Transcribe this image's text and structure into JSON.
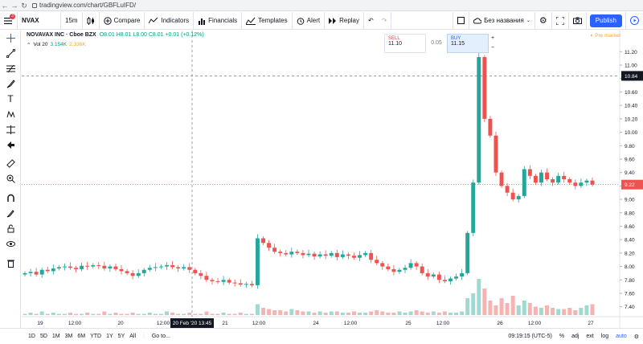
{
  "browser": {
    "url": "tradingview.com/chart/GBFLuIFD/"
  },
  "toolbar": {
    "symbol": "NVAX",
    "interval": "15m",
    "compare": "Compare",
    "indicators": "Indicators",
    "financials": "Financials",
    "templates": "Templates",
    "alert": "Alert",
    "replay": "Replay",
    "layout_name": "Без названия",
    "publish": "Publish",
    "badge_count": "3"
  },
  "legend": {
    "name": "NOVAVAX INC · Cboe BZX",
    "ohlc": "O8.01 H8.01 L8.00 C8.01 +0.01 (+0.12%)",
    "vol_label": "Vol 20",
    "vol_value1": "3.154K",
    "vol_value2": "2.336K"
  },
  "trade": {
    "sell_label": "SELL",
    "sell_price": "11.10",
    "spread": "0.05",
    "buy_label": "BUY",
    "buy_price": "11.15"
  },
  "premarket": "Pre market",
  "axis": {
    "price_ticks": [
      "11.20",
      "11.00",
      "10.80",
      "10.60",
      "10.40",
      "10.20",
      "10.00",
      "9.80",
      "9.60",
      "9.40",
      "9.20",
      "9.00",
      "8.80",
      "8.60",
      "8.40",
      "8.20",
      "8.00",
      "7.80",
      "7.60",
      "7.40"
    ],
    "time_ticks": [
      {
        "label": "19",
        "x": 50
      },
      {
        "label": "12:00",
        "x": 93
      },
      {
        "label": "20",
        "x": 150
      },
      {
        "label": "12:00",
        "x": 203
      },
      {
        "label": "21",
        "x": 280
      },
      {
        "label": "12:00",
        "x": 322
      },
      {
        "label": "24",
        "x": 393
      },
      {
        "label": "12:00",
        "x": 436
      },
      {
        "label": "25",
        "x": 508
      },
      {
        "label": "12:00",
        "x": 551
      },
      {
        "label": "26",
        "x": 622
      },
      {
        "label": "12:00",
        "x": 665
      },
      {
        "label": "27",
        "x": 735
      }
    ],
    "crosshair_price": "10.84",
    "current_price": "9.22",
    "crosshair_time": "20 Feb '20  13:45"
  },
  "bottom": {
    "ranges": [
      "1D",
      "5D",
      "1M",
      "3M",
      "6M",
      "YTD",
      "1Y",
      "5Y",
      "All"
    ],
    "goto": "Go to...",
    "clock": "09:19:15 (UTC-5)",
    "pct": "%",
    "adj": "adj",
    "ext": "ext",
    "log": "log",
    "auto": "auto"
  },
  "colors": {
    "up": "#26a69a",
    "down": "#ef5350",
    "accent": "#2962ff"
  },
  "chart_data": {
    "type": "candlestick",
    "ylim": [
      7.3,
      11.3
    ],
    "days": [
      "19",
      "20",
      "21",
      "24",
      "25",
      "26",
      "27"
    ],
    "close_trace": [
      7.9,
      7.92,
      7.88,
      7.95,
      7.93,
      7.97,
      7.99,
      8.0,
      7.98,
      7.96,
      8.01,
      8.0,
      8.02,
      8.01,
      7.97,
      8.0,
      7.96,
      7.93,
      7.9,
      7.86,
      7.9,
      7.95,
      7.98,
      7.99,
      8.0,
      8.02,
      7.99,
      7.97,
      7.99,
      7.95,
      7.9,
      7.86,
      7.8,
      7.78,
      7.77,
      7.8,
      7.76,
      7.75,
      7.73,
      7.74,
      7.72,
      8.42,
      8.35,
      8.28,
      8.22,
      8.2,
      8.18,
      8.22,
      8.2,
      8.17,
      8.19,
      8.15,
      8.18,
      8.16,
      8.2,
      8.14,
      8.18,
      8.16,
      8.13,
      8.17,
      8.2,
      8.1,
      8.05,
      8.0,
      7.96,
      7.92,
      7.95,
      7.98,
      8.05,
      8.0,
      7.9,
      7.85,
      7.88,
      7.8,
      7.78,
      7.82,
      7.85,
      7.9,
      8.5,
      9.25,
      11.12,
      10.2,
      9.95,
      9.4,
      9.2,
      9.1,
      9.0,
      9.05,
      9.45,
      9.35,
      9.25,
      9.4,
      9.3,
      9.25,
      9.35,
      9.3,
      9.25,
      9.2,
      9.25,
      9.28,
      9.22
    ],
    "volume_trace": [
      1,
      2,
      1,
      3,
      1,
      2,
      1,
      1,
      2,
      1,
      1,
      2,
      1,
      1,
      3,
      1,
      2,
      1,
      1,
      2,
      1,
      1,
      2,
      1,
      1,
      3,
      2,
      1,
      1,
      2,
      1,
      1,
      3,
      1,
      1,
      2,
      1,
      1,
      2,
      1,
      1,
      9,
      6,
      5,
      4,
      4,
      3,
      5,
      4,
      3,
      3,
      2,
      3,
      2,
      3,
      3,
      2,
      2,
      3,
      2,
      2,
      3,
      4,
      3,
      2,
      2,
      3,
      2,
      3,
      4,
      3,
      2,
      3,
      2,
      3,
      2,
      2,
      3,
      14,
      18,
      30,
      22,
      12,
      8,
      14,
      10,
      16,
      8,
      12,
      10,
      7,
      6,
      8,
      6,
      5,
      5,
      6,
      4,
      6,
      8,
      9
    ],
    "x_label": "",
    "y_label": ""
  }
}
